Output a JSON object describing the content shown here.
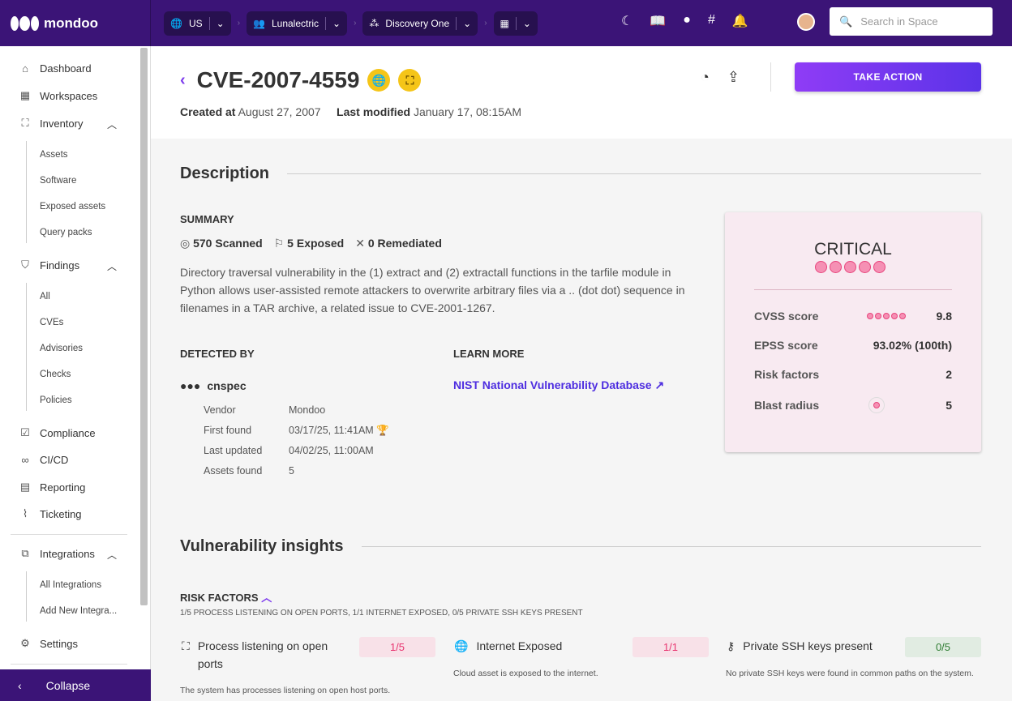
{
  "topbar": {
    "logo": "mondoo",
    "crumbs": [
      {
        "icon": "globe-icon",
        "label": "US"
      },
      {
        "icon": "people-icon",
        "label": "Lunalectric"
      },
      {
        "icon": "space-icon",
        "label": "Discovery One"
      },
      {
        "icon": "grid-icon",
        "label": ""
      }
    ],
    "search_placeholder": "Search in Space",
    "icons": [
      "moon-icon",
      "book-icon",
      "github-icon",
      "slack-icon",
      "bell-icon"
    ]
  },
  "sidebar": {
    "items": {
      "dashboard": "Dashboard",
      "workspaces": "Workspaces",
      "inventory": "Inventory",
      "assets": "Assets",
      "software": "Software",
      "exposed": "Exposed assets",
      "querypacks": "Query packs",
      "findings": "Findings",
      "all": "All",
      "cves": "CVEs",
      "advisories": "Advisories",
      "checks": "Checks",
      "policies": "Policies",
      "compliance": "Compliance",
      "cicd": "CI/CD",
      "reporting": "Reporting",
      "ticketing": "Ticketing",
      "integrations": "Integrations",
      "allint": "All Integrations",
      "addint": "Add New Integra...",
      "settings": "Settings"
    },
    "collapse": "Collapse"
  },
  "header": {
    "title": "CVE-2007-4559",
    "created_label": "Created at",
    "created": "August 27, 2007",
    "modified_label": "Last modified",
    "modified": "January 17, 08:15AM",
    "action": "TAKE ACTION"
  },
  "description": {
    "heading": "Description",
    "summary_label": "SUMMARY",
    "scanned": "570",
    "scanned_label": "Scanned",
    "exposed": "5",
    "exposed_label": "Exposed",
    "remediated": "0",
    "remediated_label": "Remediated",
    "text": "Directory traversal vulnerability in the (1) extract and (2) extractall functions in the tarfile module in Python allows user-assisted remote attackers to overwrite arbitrary files via a .. (dot dot) sequence in filenames in a TAR archive, a related issue to CVE-2001-1267.",
    "detected_label": "DETECTED BY",
    "detector": "cnspec",
    "details": [
      {
        "k": "Vendor",
        "v": "Mondoo"
      },
      {
        "k": "First found",
        "v": "03/17/25, 11:41AM"
      },
      {
        "k": "Last updated",
        "v": "04/02/25, 11:00AM"
      },
      {
        "k": "Assets found",
        "v": "5"
      }
    ],
    "learn_label": "LEARN MORE",
    "learn_link": "NIST National Vulnerability Database"
  },
  "score_card": {
    "severity": "CRITICAL",
    "severity_level": 5,
    "rows": [
      {
        "k": "CVSS score",
        "v": "9.8"
      },
      {
        "k": "EPSS score",
        "v": "93.02% (100th)"
      },
      {
        "k": "Risk factors",
        "v": "2"
      },
      {
        "k": "Blast radius",
        "v": "5"
      }
    ],
    "color": "#e8457d"
  },
  "insights": {
    "heading": "Vulnerability insights",
    "risk_label": "RISK FACTORS",
    "risk_summary": "1/5 PROCESS LISTENING ON OPEN PORTS, 1/1 INTERNET EXPOSED, 0/5 PRIVATE SSH KEYS PRESENT",
    "factors": [
      {
        "icon": "network-icon",
        "title": "Process listening on open ports",
        "value": "1/5",
        "desc": "The system has processes listening on open host ports."
      },
      {
        "icon": "globe-icon",
        "title": "Internet Exposed",
        "value": "1/1",
        "desc": "Cloud asset is exposed to the internet."
      },
      {
        "icon": "key-icon",
        "title": "Private SSH keys present",
        "value": "0/5",
        "desc": "No private SSH keys were found in common paths on the system."
      }
    ]
  }
}
